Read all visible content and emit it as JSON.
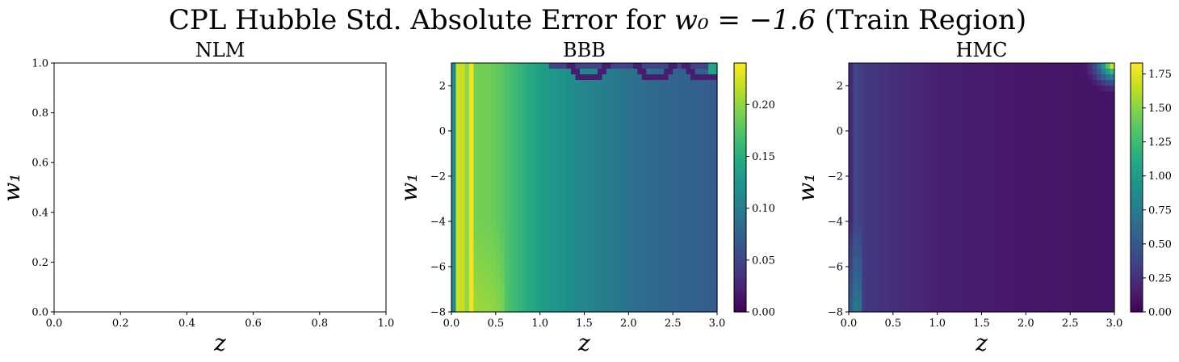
{
  "figure": {
    "title_text": "CPL Hubble Std. Absolute Error for ",
    "title_math": "w₀ = −1.6",
    "title_suffix": " (Train Region)"
  },
  "chart_data": [
    {
      "type": "heatmap",
      "title": "NLM",
      "xlabel": "z",
      "ylabel": "w₁",
      "xlim": [
        0.0,
        1.0
      ],
      "ylim": [
        0.0,
        1.0
      ],
      "xticks": [
        "0.0",
        "0.2",
        "0.4",
        "0.6",
        "0.8",
        "1.0"
      ],
      "yticks": [
        "0.0",
        "0.2",
        "0.4",
        "0.6",
        "0.8",
        "1.0"
      ],
      "empty": true,
      "colorbar": false
    },
    {
      "type": "heatmap",
      "title": "BBB",
      "xlabel": "z",
      "ylabel": "w₁",
      "xlim": [
        0.0,
        3.0
      ],
      "ylim": [
        -8,
        3
      ],
      "xticks": [
        "0.0",
        "0.5",
        "1.0",
        "1.5",
        "2.0",
        "2.5",
        "3.0"
      ],
      "yticks": [
        "−8",
        "−6",
        "−4",
        "−2",
        "0",
        "2"
      ],
      "colormap": "viridis",
      "colorbar": true,
      "clim": [
        0.0,
        0.24
      ],
      "colorbar_ticks": [
        "0.00",
        "0.05",
        "0.10",
        "0.15",
        "0.20"
      ],
      "z_profile": [
        [
          0.0,
          0.01
        ],
        [
          0.05,
          0.21
        ],
        [
          0.1,
          0.23
        ],
        [
          0.2,
          0.19
        ],
        [
          0.3,
          0.19
        ],
        [
          0.5,
          0.185
        ],
        [
          0.7,
          0.165
        ],
        [
          1.0,
          0.135
        ],
        [
          1.5,
          0.11
        ],
        [
          2.0,
          0.09
        ],
        [
          2.5,
          0.078
        ],
        [
          3.0,
          0.07
        ]
      ],
      "features": "bright stripe near z≈0.2; dark arcs near top edge for z between 1.1 and 3.0"
    },
    {
      "type": "heatmap",
      "title": "HMC",
      "xlabel": "z",
      "ylabel": "w₁",
      "xlim": [
        0.0,
        3.0
      ],
      "ylim": [
        -8,
        3
      ],
      "xticks": [
        "0.0",
        "0.5",
        "1.0",
        "1.5",
        "2.0",
        "2.5",
        "3.0"
      ],
      "yticks": [
        "−8",
        "−6",
        "−4",
        "−2",
        "0",
        "2"
      ],
      "colormap": "viridis",
      "colorbar": true,
      "clim": [
        0.0,
        1.83
      ],
      "colorbar_ticks": [
        "0.00",
        "0.25",
        "0.50",
        "0.75",
        "1.00",
        "1.25",
        "1.50",
        "1.75"
      ],
      "z_profile": [
        [
          0.0,
          0.05
        ],
        [
          0.05,
          0.4
        ],
        [
          0.2,
          0.3
        ],
        [
          0.5,
          0.25
        ],
        [
          1.0,
          0.17
        ],
        [
          2.0,
          0.12
        ],
        [
          3.0,
          0.1
        ]
      ],
      "features": "bright corner up to ~1.8 at z≈3, w₁≈3; lighter band near z≈0.1 at low w₁"
    }
  ]
}
